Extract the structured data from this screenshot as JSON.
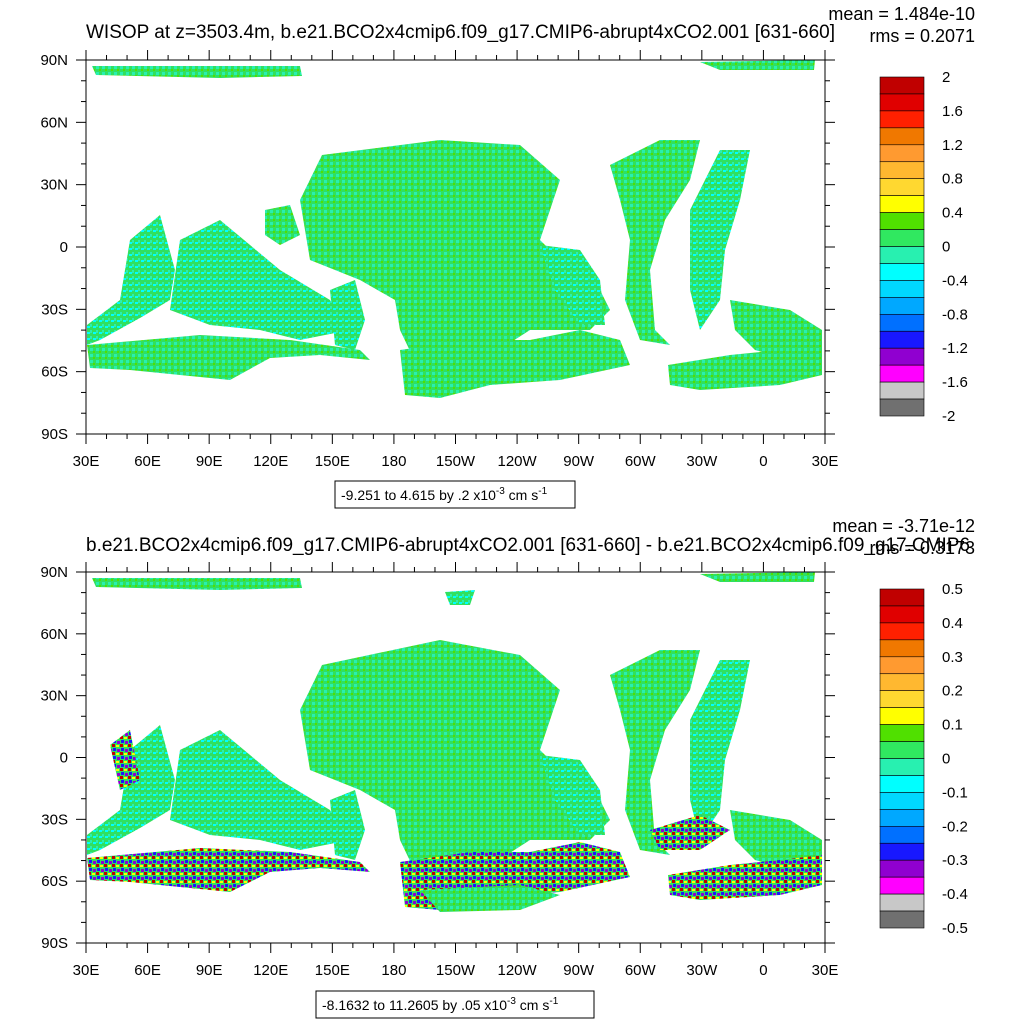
{
  "chart_data": [
    {
      "type": "heatmap",
      "title": "WISOP at z=3503.4m, b.e21.BCO2x4cmip6.f09_g17.CMIP6-abrupt4xCO2.001 [631-660]",
      "stats": {
        "mean": "mean = 1.484e-10",
        "rms": "rms = 0.2071"
      },
      "lat_ticks": [
        "90N",
        "60N",
        "30N",
        "0",
        "30S",
        "60S",
        "90S"
      ],
      "lon_ticks": [
        "30E",
        "60E",
        "90E",
        "120E",
        "150E",
        "180",
        "150W",
        "120W",
        "90W",
        "60W",
        "30W",
        "0",
        "30E"
      ],
      "ylim": [
        -90,
        90
      ],
      "xlim": [
        30,
        390
      ],
      "range_label": {
        "text": "-9.251 to 4.615 by .2 x10",
        "exp": "-3",
        "unit": " cm s",
        "unit_exp": "-1"
      },
      "colorbar": {
        "labels": [
          "2",
          "1.6",
          "1.2",
          "0.8",
          "0.4",
          "0",
          "-0.4",
          "-0.8",
          "-1.2",
          "-1.6",
          "-2"
        ],
        "colors": [
          "#c00000",
          "#e00000",
          "#ff2000",
          "#f07800",
          "#ff9a30",
          "#ffb830",
          "#ffd830",
          "#ffff00",
          "#50e000",
          "#30e860",
          "#28f0b0",
          "#00ffff",
          "#00d8ff",
          "#00a8ff",
          "#0070ff",
          "#1818ff",
          "#9000d0",
          "#ff00ff",
          "#c8c8c8",
          "#707070"
        ]
      }
    },
    {
      "type": "heatmap",
      "title": "b.e21.BCO2x4cmip6.f09_g17.CMIP6-abrupt4xCO2.001 [631-660] - b.e21.BCO2x4cmip6.f09_g17.CMIP6",
      "stats": {
        "mean": "mean = -3.71e-12",
        "rms": "rms = 0.3173"
      },
      "lat_ticks": [
        "90N",
        "60N",
        "30N",
        "0",
        "30S",
        "60S",
        "90S"
      ],
      "lon_ticks": [
        "30E",
        "60E",
        "90E",
        "120E",
        "150E",
        "180",
        "150W",
        "120W",
        "90W",
        "60W",
        "30W",
        "0",
        "30E"
      ],
      "ylim": [
        -90,
        90
      ],
      "xlim": [
        30,
        390
      ],
      "range_label": {
        "text": "-8.1632 to 11.2605 by .05 x10",
        "exp": "-3",
        "unit": " cm s",
        "unit_exp": "-1"
      },
      "colorbar": {
        "labels": [
          "0.5",
          "0.4",
          "0.3",
          "0.2",
          "0.1",
          "0",
          "-0.1",
          "-0.2",
          "-0.3",
          "-0.4",
          "-0.5"
        ],
        "colors": [
          "#c00000",
          "#e00000",
          "#ff2000",
          "#f07800",
          "#ff9a30",
          "#ffb830",
          "#ffd830",
          "#ffff00",
          "#50e000",
          "#30e860",
          "#28f0b0",
          "#00ffff",
          "#00d8ff",
          "#00a8ff",
          "#0070ff",
          "#1818ff",
          "#9000d0",
          "#ff00ff",
          "#c8c8c8",
          "#707070"
        ]
      }
    }
  ]
}
